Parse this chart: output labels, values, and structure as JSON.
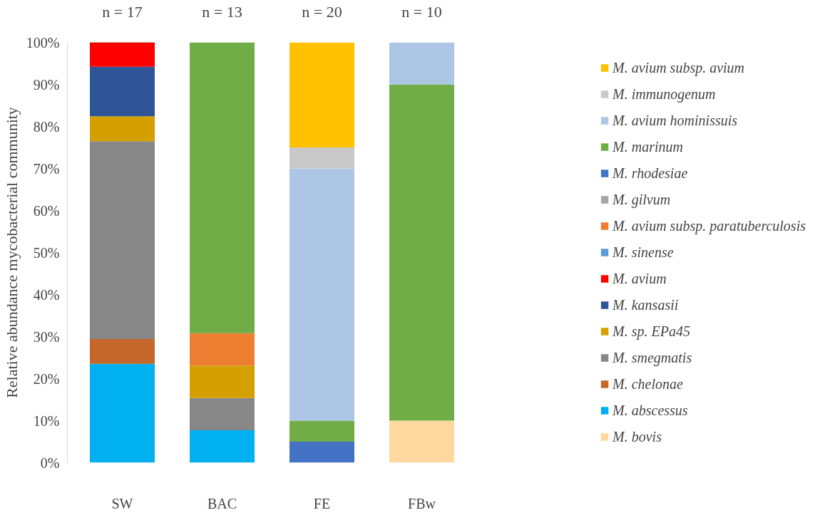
{
  "chart_data": {
    "type": "bar",
    "stacked": true,
    "ylabel": "Relative abundance mycobacterial community",
    "categories": [
      "SW",
      "BAC",
      "FE",
      "FBw"
    ],
    "series": [
      {
        "name": "M. bovis",
        "color": "#ffd8a0",
        "values": [
          0,
          0,
          0,
          10
        ]
      },
      {
        "name": "M. abscessus",
        "color": "#00b0f0",
        "values": [
          23.5,
          7.7,
          0,
          0
        ]
      },
      {
        "name": "M. chelonae",
        "color": "#c5662a",
        "values": [
          5.9,
          0,
          0,
          0
        ]
      },
      {
        "name": "M. smegmatis",
        "color": "#878787",
        "values": [
          47.1,
          7.7,
          0,
          0
        ]
      },
      {
        "name": "M. sp. EPa45",
        "color": "#d4a000",
        "values": [
          5.9,
          7.7,
          0,
          0
        ]
      },
      {
        "name": "M. kansasii",
        "color": "#2f5597",
        "values": [
          11.8,
          0,
          0,
          0
        ]
      },
      {
        "name": "M. avium",
        "color": "#ff0000",
        "values": [
          5.9,
          0,
          0,
          0
        ]
      },
      {
        "name": "M. sinense",
        "color": "#5b9bd5",
        "values": [
          0,
          0,
          0,
          0
        ]
      },
      {
        "name": "M. avium subsp. paratuberculosis",
        "color": "#ed7d31",
        "values": [
          0,
          7.7,
          0,
          0
        ]
      },
      {
        "name": "M. gilvum",
        "color": "#a5a5a5",
        "values": [
          0,
          0,
          0,
          0
        ]
      },
      {
        "name": "M. rhodesiae",
        "color": "#4472c4",
        "values": [
          0,
          0,
          5,
          0
        ]
      },
      {
        "name": "M. marinum",
        "color": "#70ad47",
        "values": [
          0,
          69.2,
          5,
          80
        ]
      },
      {
        "name": "M. avium hominissuis",
        "color": "#adc6e5",
        "values": [
          0,
          0,
          60,
          10
        ]
      },
      {
        "name": "M. immunogenum",
        "color": "#c9c9c9",
        "values": [
          0,
          0,
          5,
          0
        ]
      },
      {
        "name": "M. avium subsp. avium",
        "color": "#ffc000",
        "values": [
          0,
          0,
          25,
          0
        ]
      }
    ],
    "ylim": [
      0,
      100
    ],
    "yticks": [
      {
        "value": 0,
        "label": "0%"
      },
      {
        "value": 10,
        "label": "10%"
      },
      {
        "value": 20,
        "label": "20%"
      },
      {
        "value": 30,
        "label": "30%"
      },
      {
        "value": 40,
        "label": "40%"
      },
      {
        "value": 50,
        "label": "50%"
      },
      {
        "value": 60,
        "label": "60%"
      },
      {
        "value": 70,
        "label": "70%"
      },
      {
        "value": 80,
        "label": "80%"
      },
      {
        "value": 90,
        "label": "90%"
      },
      {
        "value": 100,
        "label": "100%"
      }
    ],
    "annotations": [
      "n = 17",
      "n = 13",
      "n = 20",
      "n = 10"
    ],
    "legend": "right",
    "grid": false
  }
}
